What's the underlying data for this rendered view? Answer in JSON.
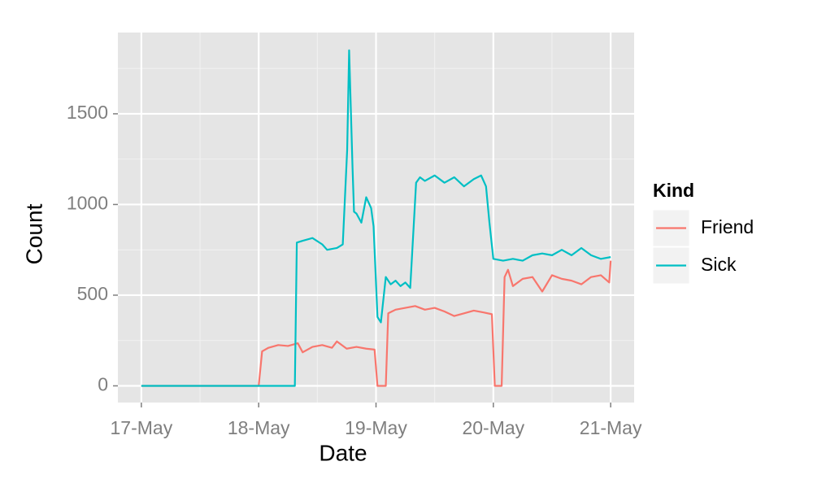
{
  "chart_data": {
    "type": "line",
    "x_label": "Date",
    "y_label": "Count",
    "legend_title": "Kind",
    "legend_position": "right",
    "xlim": [
      -4.8,
      100.8
    ],
    "ylim": [
      -92,
      1948
    ],
    "xticks": [
      {
        "value": 0,
        "label": "17-May"
      },
      {
        "value": 24,
        "label": "18-May"
      },
      {
        "value": 48,
        "label": "19-May"
      },
      {
        "value": 72,
        "label": "20-May"
      },
      {
        "value": 96,
        "label": "21-May"
      }
    ],
    "xminor": [
      12,
      36,
      60,
      84
    ],
    "yticks": [
      0,
      500,
      1000,
      1500
    ],
    "yminor": [
      250,
      750,
      1250,
      1750
    ],
    "grid": true,
    "series": [
      {
        "name": "Friend",
        "color": "#f8766d",
        "x": [
          0,
          24,
          24.7,
          26,
          28,
          30,
          32,
          33,
          35,
          37,
          39,
          40,
          42,
          44,
          46,
          47.7,
          48.3,
          50,
          50.5,
          52,
          54,
          56,
          58,
          60,
          62,
          64,
          66,
          68,
          70,
          71.7,
          72.3,
          73.7,
          74.3,
          75,
          76,
          78,
          80,
          82,
          84,
          86,
          88,
          90,
          92,
          94,
          95.7,
          96
        ],
        "values": [
          0,
          0,
          190,
          210,
          225,
          220,
          235,
          185,
          215,
          225,
          210,
          245,
          205,
          215,
          205,
          200,
          0,
          0,
          400,
          420,
          430,
          440,
          420,
          430,
          410,
          385,
          400,
          415,
          405,
          395,
          0,
          0,
          600,
          640,
          550,
          590,
          600,
          520,
          610,
          590,
          580,
          560,
          600,
          610,
          570,
          690
        ]
      },
      {
        "name": "Sick",
        "color": "#00bfc4",
        "x": [
          0,
          31.4,
          31.8,
          33,
          35,
          37,
          38,
          40,
          41.2,
          42.1,
          42.5,
          43.2,
          43.5,
          44,
          45,
          46,
          47,
          47.5,
          48.3,
          49,
          50,
          51,
          52,
          53,
          54,
          55,
          56.2,
          57,
          58,
          60,
          62,
          64,
          66,
          68,
          69.5,
          70.5,
          71.2,
          72,
          74,
          76,
          78,
          80,
          82,
          84,
          86,
          88,
          90,
          92,
          94,
          96
        ],
        "values": [
          0,
          0,
          790,
          800,
          815,
          780,
          750,
          760,
          780,
          1300,
          1850,
          1200,
          960,
          950,
          900,
          1040,
          980,
          880,
          380,
          350,
          600,
          560,
          580,
          550,
          570,
          540,
          1120,
          1150,
          1130,
          1160,
          1120,
          1150,
          1100,
          1140,
          1160,
          1100,
          900,
          700,
          690,
          700,
          690,
          720,
          730,
          720,
          750,
          720,
          760,
          720,
          700,
          710
        ]
      }
    ]
  }
}
